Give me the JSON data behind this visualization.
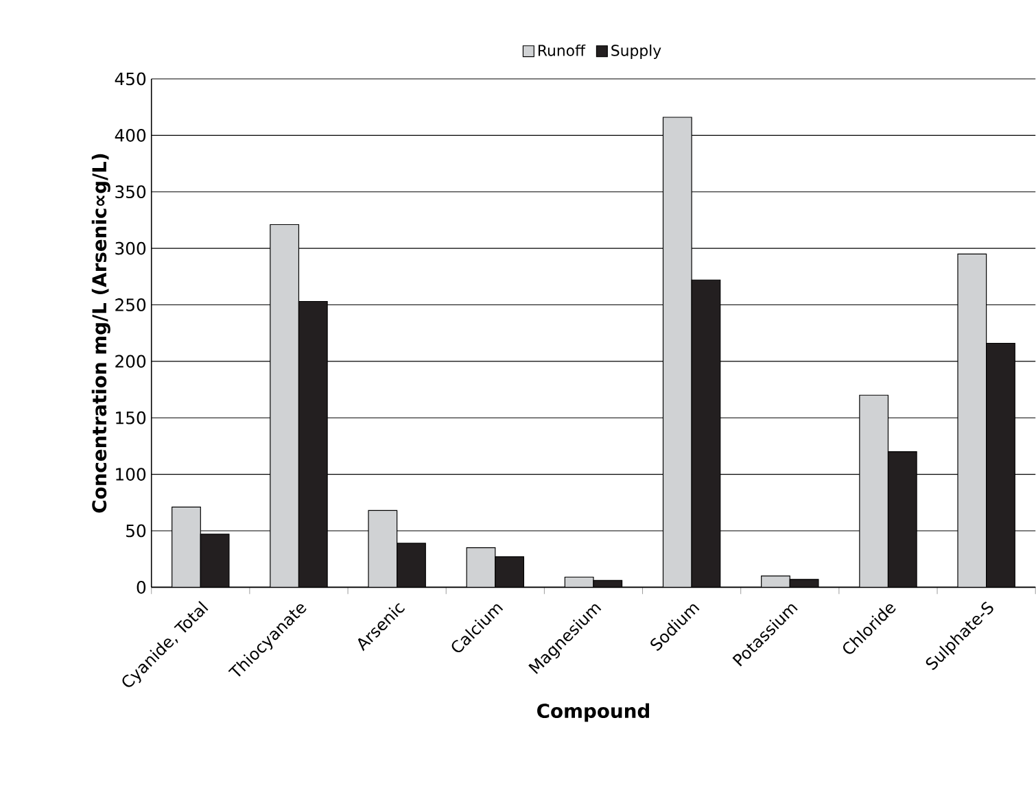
{
  "chart_data": {
    "type": "bar",
    "xlabel": "Compound",
    "ylabel": "Concentration mg/L (Arsenic∝g/L)",
    "categories": [
      "Cyanide, Total",
      "Thiocyanate",
      "Arsenic",
      "Calcium",
      "Magnesium",
      "Sodium",
      "Potassium",
      "Chloride",
      "Sulphate-S"
    ],
    "series": [
      {
        "name": "Runoff",
        "color": "#d0d2d4",
        "values": [
          71,
          321,
          68,
          35,
          9,
          416,
          10,
          170,
          295
        ]
      },
      {
        "name": "Supply",
        "color": "#231f20",
        "values": [
          47,
          253,
          39,
          27,
          6,
          272,
          7,
          120,
          216
        ]
      }
    ],
    "ylim": [
      0,
      450
    ],
    "yticks": [
      0,
      50,
      100,
      150,
      200,
      250,
      300,
      350,
      400,
      450
    ],
    "grid": "y",
    "legend": "top"
  }
}
